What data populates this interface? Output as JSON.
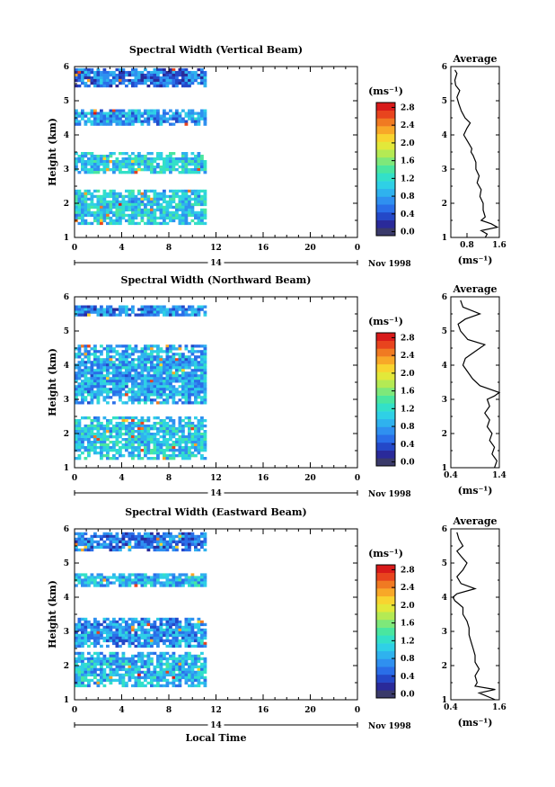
{
  "figure": {
    "xlabel": "Local Time",
    "date_label": "Nov 1998",
    "day_label": "14",
    "colorbar_unit": "(ms⁻¹)",
    "profile_title": "Average",
    "profile_xlabel": "(ms⁻¹)",
    "ylabel": "Height (km)"
  },
  "colors": {
    "scale": [
      "#3a3a6a",
      "#2a2a9a",
      "#2448c8",
      "#2a6ee8",
      "#2f90f0",
      "#2fb2ee",
      "#2fd0e6",
      "#33e0c8",
      "#4ae6a0",
      "#7ee87a",
      "#b4ea54",
      "#e2e83a",
      "#f8d430",
      "#f8a828",
      "#f07a22",
      "#e8441e",
      "#d81a1a"
    ]
  },
  "chart_data": [
    {
      "type": "heatmap",
      "title": "Spectral Width (Vertical Beam)",
      "xlabel": "Local Time",
      "ylabel": "Height (km)",
      "xlim": [
        0,
        24
      ],
      "ylim": [
        1,
        6
      ],
      "xticks": [
        "0",
        "4",
        "8",
        "12",
        "16",
        "20",
        "0"
      ],
      "yticks": [
        "1",
        "2",
        "3",
        "4",
        "5",
        "6"
      ],
      "colorbar": {
        "label": "(ms⁻¹)",
        "ticks": [
          "0.0",
          "0.4",
          "0.8",
          "1.2",
          "1.6",
          "2.0",
          "2.4",
          "2.8"
        ],
        "range": [
          0,
          3.0
        ]
      },
      "data_coverage_hours": [
        0,
        11
      ],
      "layers_km": [
        {
          "from": 1.4,
          "to": 2.4,
          "mean_width": 1.1
        },
        {
          "from": 2.9,
          "to": 3.5,
          "mean_width": 1.1
        },
        {
          "from": 4.3,
          "to": 4.75,
          "mean_width": 0.8
        },
        {
          "from": 5.45,
          "to": 5.95,
          "mean_width": 0.6
        }
      ],
      "profile": {
        "title": "Average",
        "xlabel": "(ms⁻¹)",
        "xlim": [
          0.4,
          1.6
        ],
        "xticks": [
          "0.8",
          "1.6"
        ],
        "height_km": [
          1.0,
          1.1,
          1.2,
          1.3,
          1.4,
          1.5,
          1.6,
          1.8,
          2.0,
          2.2,
          2.4,
          2.6,
          2.8,
          3.0,
          3.2,
          3.4,
          3.5,
          3.6,
          3.8,
          4.0,
          4.2,
          4.35,
          4.5,
          4.7,
          4.9,
          5.1,
          5.3,
          5.45,
          5.6,
          5.8,
          5.9
        ],
        "width": [
          1.25,
          1.3,
          1.15,
          1.55,
          1.4,
          1.15,
          1.25,
          1.2,
          1.2,
          1.12,
          1.15,
          1.05,
          1.1,
          1.02,
          1.02,
          0.95,
          0.9,
          0.92,
          0.82,
          0.72,
          0.8,
          0.88,
          0.75,
          0.66,
          0.6,
          0.55,
          0.62,
          0.52,
          0.5,
          0.55,
          0.5
        ]
      }
    },
    {
      "type": "heatmap",
      "title": "Spectral Width (Northward Beam)",
      "xlabel": "Local Time",
      "ylabel": "Height (km)",
      "xlim": [
        0,
        24
      ],
      "ylim": [
        1,
        6
      ],
      "xticks": [
        "0",
        "4",
        "8",
        "12",
        "16",
        "20",
        "0"
      ],
      "yticks": [
        "1",
        "2",
        "3",
        "4",
        "5",
        "6"
      ],
      "colorbar": {
        "label": "(ms⁻¹)",
        "ticks": [
          "0.0",
          "0.4",
          "0.8",
          "1.2",
          "1.6",
          "2.0",
          "2.4",
          "2.8"
        ],
        "range": [
          0,
          3.0
        ]
      },
      "data_coverage_hours": [
        0,
        11
      ],
      "layers_km": [
        {
          "from": 1.3,
          "to": 2.5,
          "mean_width": 1.1
        },
        {
          "from": 2.9,
          "to": 4.6,
          "mean_width": 0.9
        },
        {
          "from": 5.45,
          "to": 5.75,
          "mean_width": 0.7
        }
      ],
      "profile": {
        "title": "Average",
        "xlabel": "(ms⁻¹)",
        "xlim": [
          0.4,
          1.4
        ],
        "xticks": [
          "0.4",
          "1.4"
        ],
        "height_km": [
          1.0,
          1.2,
          1.4,
          1.6,
          1.8,
          2.0,
          2.2,
          2.4,
          2.6,
          2.8,
          3.0,
          3.1,
          3.2,
          3.4,
          3.6,
          3.8,
          4.0,
          4.2,
          4.4,
          4.6,
          4.75,
          5.0,
          5.2,
          5.35,
          5.5,
          5.7,
          5.9
        ],
        "width": [
          1.3,
          1.35,
          1.25,
          1.3,
          1.2,
          1.25,
          1.15,
          1.2,
          1.1,
          1.2,
          1.15,
          1.3,
          1.4,
          1.0,
          0.85,
          0.75,
          0.65,
          0.7,
          0.9,
          1.1,
          0.75,
          0.6,
          0.55,
          0.7,
          1.0,
          0.65,
          0.6
        ]
      }
    },
    {
      "type": "heatmap",
      "title": "Spectral Width (Eastward Beam)",
      "xlabel": "Local Time",
      "ylabel": "Height (km)",
      "xlim": [
        0,
        24
      ],
      "ylim": [
        1,
        6
      ],
      "xticks": [
        "0",
        "4",
        "8",
        "12",
        "16",
        "20",
        "0"
      ],
      "yticks": [
        "1",
        "2",
        "3",
        "4",
        "5",
        "6"
      ],
      "colorbar": {
        "label": "(ms⁻¹)",
        "ticks": [
          "0.0",
          "0.4",
          "0.8",
          "1.2",
          "1.6",
          "2.0",
          "2.4",
          "2.8"
        ],
        "range": [
          0,
          3.0
        ]
      },
      "data_coverage_hours": [
        0,
        11
      ],
      "layers_km": [
        {
          "from": 1.4,
          "to": 2.4,
          "mean_width": 1.0
        },
        {
          "from": 2.6,
          "to": 3.4,
          "mean_width": 0.8
        },
        {
          "from": 4.35,
          "to": 4.7,
          "mean_width": 1.0
        },
        {
          "from": 5.4,
          "to": 5.9,
          "mean_width": 0.6
        }
      ],
      "profile": {
        "title": "Average",
        "xlabel": "(ms⁻¹)",
        "xlim": [
          0.4,
          1.6
        ],
        "xticks": [
          "0.4",
          "1.6"
        ],
        "height_km": [
          1.0,
          1.2,
          1.3,
          1.4,
          1.5,
          1.7,
          1.9,
          2.1,
          2.3,
          2.5,
          2.7,
          2.9,
          3.1,
          3.3,
          3.5,
          3.7,
          3.9,
          4.0,
          4.1,
          4.25,
          4.4,
          4.6,
          4.8,
          5.0,
          5.2,
          5.35,
          5.5,
          5.7,
          5.9
        ],
        "width": [
          1.5,
          1.1,
          1.5,
          1.0,
          1.05,
          1.0,
          1.1,
          1.0,
          1.0,
          0.95,
          0.9,
          0.85,
          0.85,
          0.8,
          0.7,
          0.7,
          0.5,
          0.45,
          0.55,
          1.0,
          0.65,
          0.55,
          0.7,
          0.8,
          0.65,
          0.55,
          0.7,
          0.6,
          0.55
        ]
      }
    }
  ]
}
